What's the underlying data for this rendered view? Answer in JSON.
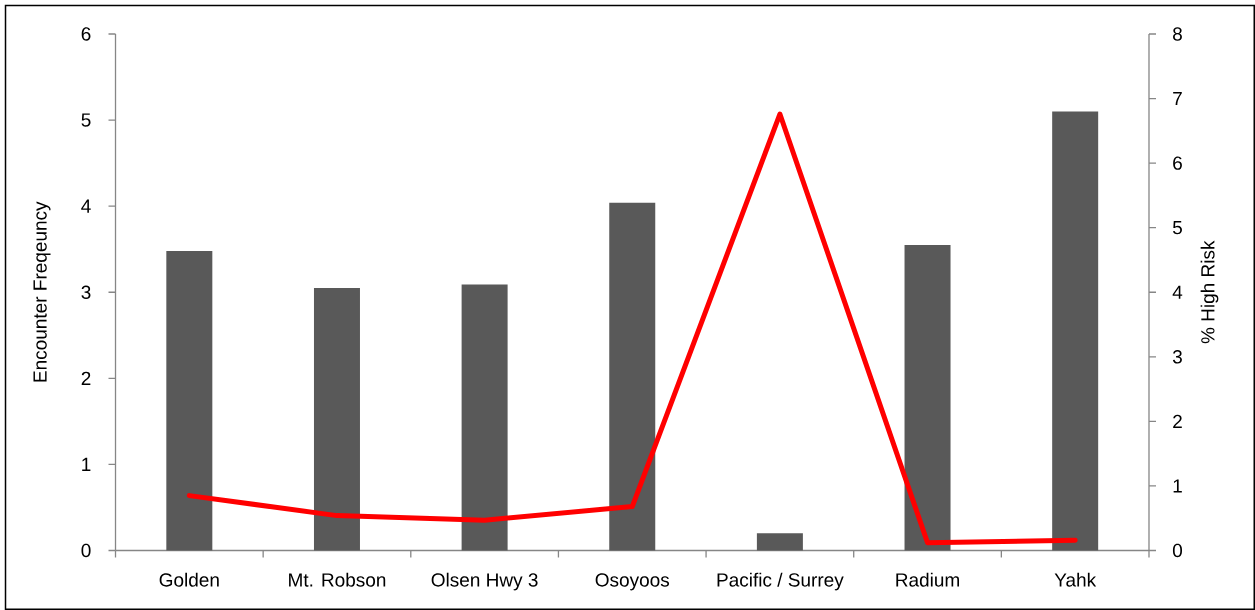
{
  "chart_data": {
    "type": "bar",
    "ylabel": "Encounter Freqeuncy",
    "y2label": "% High Risk",
    "categories": [
      "Golden",
      "Mt. Robson",
      "Olsen Hwy 3",
      "Osoyoos",
      "Pacific / Surrey",
      "Radium",
      "Yahk"
    ],
    "series": [
      {
        "color": "#595959",
        "values": [
          3.48,
          3.05,
          3.09,
          4.04,
          0.2,
          3.55,
          5.1
        ]
      },
      {
        "type": "line",
        "axis": "y2",
        "color": "#ff0000",
        "values": [
          0.85,
          0.54,
          0.47,
          0.68,
          6.76,
          0.12,
          0.16
        ]
      }
    ],
    "ylim": [
      0,
      6
    ],
    "yticks": [
      0,
      1,
      2,
      3,
      4,
      5,
      6
    ],
    "y2lim": [
      0,
      8
    ],
    "y2ticks": [
      0,
      1,
      2,
      3,
      4,
      5,
      6,
      7,
      8
    ]
  }
}
